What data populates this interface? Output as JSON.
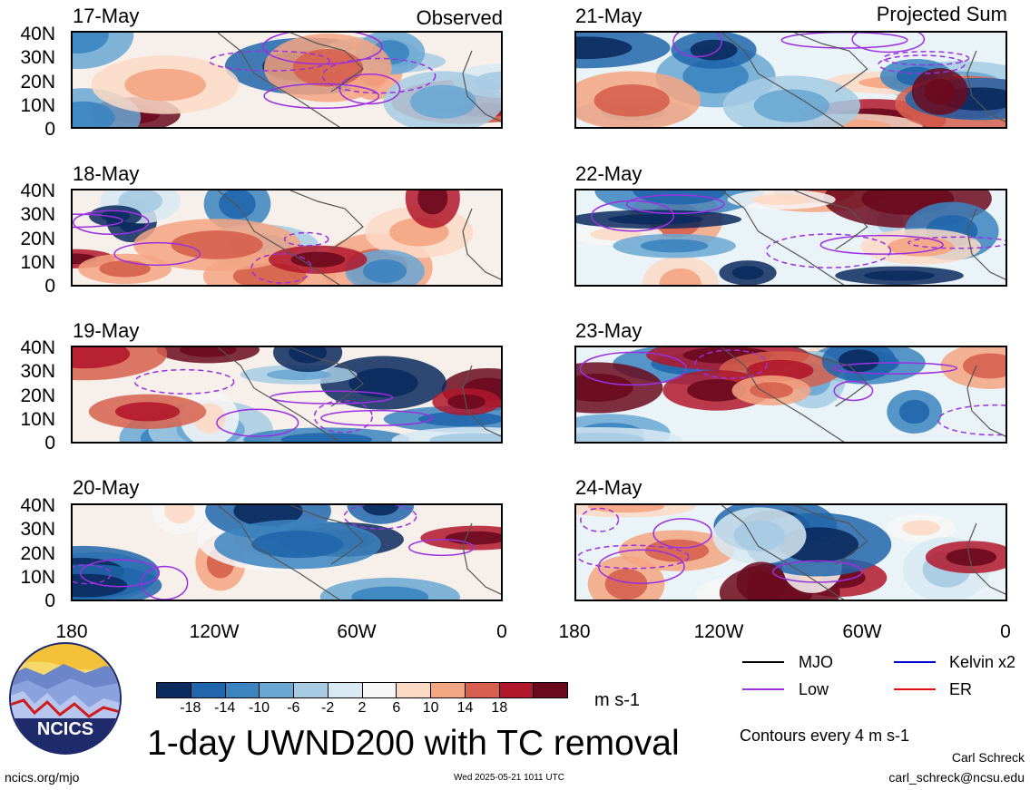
{
  "header": {
    "observed_label": "Observed",
    "projected_label": "Projected Sum"
  },
  "panels_left": [
    {
      "date": "17-May"
    },
    {
      "date": "18-May"
    },
    {
      "date": "19-May"
    },
    {
      "date": "20-May"
    }
  ],
  "panels_right": [
    {
      "date": "21-May"
    },
    {
      "date": "22-May"
    },
    {
      "date": "23-May"
    },
    {
      "date": "24-May"
    }
  ],
  "lat_ticks": [
    "40N",
    "30N",
    "20N",
    "10N",
    "0"
  ],
  "lon_ticks": [
    "180",
    "120W",
    "60W",
    "0"
  ],
  "colorbar": {
    "ticks": [
      "-18",
      "-14",
      "-10",
      "-6",
      "-2",
      "2",
      "6",
      "10",
      "14",
      "18"
    ],
    "units": "m s-1",
    "colors": [
      "#0b2a5e",
      "#2166ac",
      "#3b84c0",
      "#6aa7d3",
      "#a6cbe3",
      "#d8e9f2",
      "#f7f7f7",
      "#fcd9c5",
      "#f4a582",
      "#d6604d",
      "#b2182b",
      "#6b0a1e"
    ]
  },
  "legend": {
    "items": [
      {
        "label": "MJO",
        "color": "#000000"
      },
      {
        "label": "Kelvin x2",
        "color": "#0000cc"
      },
      {
        "label": "Low",
        "color": "#9b30e0"
      },
      {
        "label": "ER",
        "color": "#e01010"
      }
    ],
    "contour_note": "Contours every 4 m s-1"
  },
  "main_title": "1-day UWND200 with TC removal",
  "logo": {
    "text": "NCICS"
  },
  "footer": {
    "url": "ncics.org/mjo",
    "timestamp": "Wed 2025-05-21 1011 UTC",
    "author": "Carl Schreck",
    "email": "carl_schreck@ncsu.edu"
  }
}
